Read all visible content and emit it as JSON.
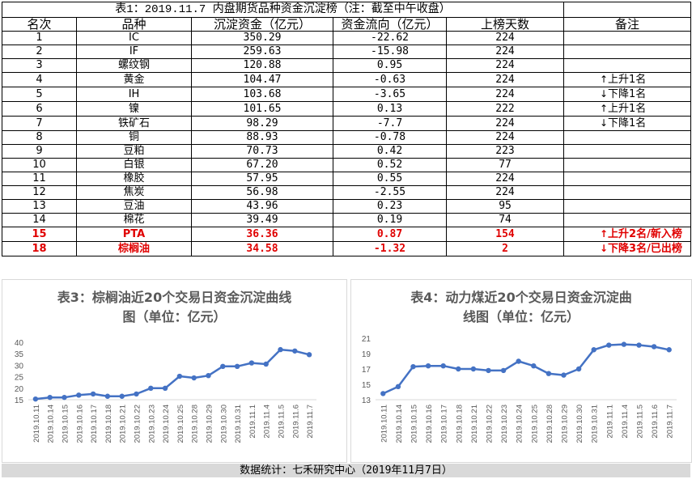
{
  "table": {
    "title": "表1：2019.11.7 内盘期货品种资金沉淀榜（注：截至中午收盘）",
    "headers": [
      "名次",
      "品种",
      "沉淀资金（亿元）",
      "资金流向（亿元）",
      "上榜天数",
      "备注"
    ],
    "rows": [
      {
        "rank": "1",
        "name": "IC",
        "amount": "350.29",
        "flow": "-22.62",
        "days": "224",
        "note": "",
        "arrow": ""
      },
      {
        "rank": "2",
        "name": "IF",
        "amount": "259.63",
        "flow": "-15.98",
        "days": "224",
        "note": "",
        "arrow": ""
      },
      {
        "rank": "3",
        "name": "螺纹钢",
        "amount": "120.88",
        "flow": "0.95",
        "days": "224",
        "note": "",
        "arrow": ""
      },
      {
        "rank": "4",
        "name": "黄金",
        "amount": "104.47",
        "flow": "-0.63",
        "days": "224",
        "note": "上升1名",
        "arrow": "up"
      },
      {
        "rank": "5",
        "name": "IH",
        "amount": "103.68",
        "flow": "-3.65",
        "days": "224",
        "note": "下降1名",
        "arrow": "down"
      },
      {
        "rank": "6",
        "name": "镍",
        "amount": "101.65",
        "flow": "0.13",
        "days": "222",
        "note": "上升1名",
        "arrow": "up"
      },
      {
        "rank": "7",
        "name": "铁矿石",
        "amount": "98.29",
        "flow": "-7.7",
        "days": "224",
        "note": "下降1名",
        "arrow": "down"
      },
      {
        "rank": "8",
        "name": "铜",
        "amount": "88.93",
        "flow": "-0.78",
        "days": "224",
        "note": "",
        "arrow": ""
      },
      {
        "rank": "9",
        "name": "豆粕",
        "amount": "70.73",
        "flow": "0.42",
        "days": "223",
        "note": "",
        "arrow": ""
      },
      {
        "rank": "10",
        "name": "白银",
        "amount": "67.20",
        "flow": "0.52",
        "days": "77",
        "note": "",
        "arrow": ""
      },
      {
        "rank": "11",
        "name": "橡胶",
        "amount": "57.95",
        "flow": "0.55",
        "days": "224",
        "note": "",
        "arrow": ""
      },
      {
        "rank": "12",
        "name": "焦炭",
        "amount": "56.98",
        "flow": "-2.55",
        "days": "224",
        "note": "",
        "arrow": ""
      },
      {
        "rank": "13",
        "name": "豆油",
        "amount": "43.96",
        "flow": "0.23",
        "days": "95",
        "note": "",
        "arrow": ""
      },
      {
        "rank": "14",
        "name": "棉花",
        "amount": "39.49",
        "flow": "0.19",
        "days": "74",
        "note": "",
        "arrow": ""
      },
      {
        "rank": "15",
        "name": "PTA",
        "amount": "36.36",
        "flow": "0.87",
        "days": "154",
        "note": "上升2名/新入榜",
        "arrow": "up",
        "highlight": true
      },
      {
        "rank": "18",
        "name": "棕榈油",
        "amount": "34.58",
        "flow": "-1.32",
        "days": "2",
        "note": "下降3名/已出榜",
        "arrow": "down",
        "highlight": true
      }
    ]
  },
  "arrows": {
    "up": "↑",
    "down": "↓"
  },
  "chart_data": [
    {
      "type": "line",
      "title": "表3：棕榈油近20个交易日资金沉淀曲线图（单位：亿元）",
      "title_lines": [
        "表3：棕榈油近20个交易日资金沉淀曲线",
        "图（单位：亿元）"
      ],
      "categories": [
        "2019.10.11",
        "2019.10.14",
        "2019.10.15",
        "2019.10.16",
        "2019.10.17",
        "2019.10.18",
        "2019.10.21",
        "2019.10.22",
        "2019.10.23",
        "2019.10.24",
        "2019.10.25",
        "2019.10.28",
        "2019.10.29",
        "2019.10.30",
        "2019.10.31",
        "2019.11.1",
        "2019.11.4",
        "2019.11.5",
        "2019.11.6",
        "2019.11.7"
      ],
      "values": [
        15.3,
        16.0,
        16.0,
        17.0,
        17.5,
        16.5,
        16.5,
        17.5,
        20.0,
        20.0,
        25.2,
        24.5,
        25.5,
        29.5,
        29.5,
        31.0,
        30.5,
        36.8,
        36.2,
        34.6
      ],
      "yticks": [
        "15",
        "20",
        "25",
        "30",
        "35",
        "40"
      ],
      "ylim": [
        15,
        40
      ],
      "color": "#4472c4"
    },
    {
      "type": "line",
      "title": "表4：动力煤近20个交易日资金沉淀曲线图（单位：亿元）",
      "title_lines": [
        "表4：动力煤近20个交易日资金沉淀曲",
        "线图（单位：亿元）"
      ],
      "categories": [
        "2019.10.11",
        "2019.10.14",
        "2019.10.15",
        "2019.10.16",
        "2019.10.17",
        "2019.10.18",
        "2019.10.21",
        "2019.10.22",
        "2019.10.23",
        "2019.10.24",
        "2019.10.25",
        "2019.10.28",
        "2019.10.29",
        "2019.10.30",
        "2019.10.31",
        "2019.11.1",
        "2019.11.4",
        "2019.11.5",
        "2019.11.6",
        "2019.11.7"
      ],
      "values": [
        13.8,
        14.7,
        17.3,
        17.4,
        17.4,
        17.0,
        17.0,
        16.8,
        16.8,
        18.0,
        17.4,
        16.4,
        16.2,
        17.0,
        19.5,
        20.1,
        20.2,
        20.1,
        19.9,
        19.5
      ],
      "yticks": [
        "13",
        "15",
        "17",
        "19",
        "21"
      ],
      "ylim": [
        13,
        21
      ],
      "color": "#4472c4"
    }
  ],
  "footer": "数据统计：七禾研究中心（2019年11月7日）"
}
